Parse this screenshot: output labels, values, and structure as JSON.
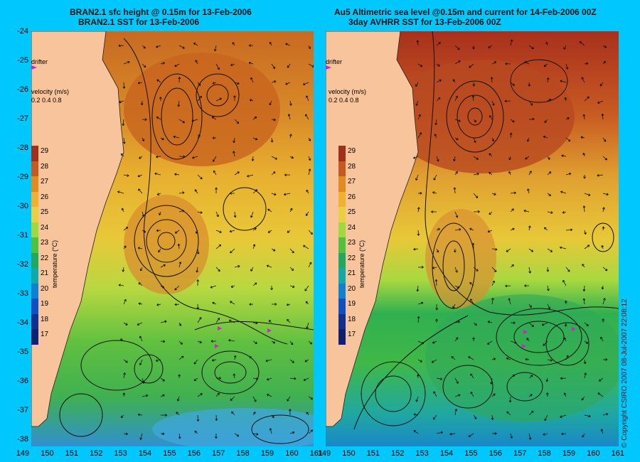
{
  "left_panel": {
    "title_line1": "BRAN2.1 sfc height @ 0.15m for 13-Feb-2006",
    "title_line2": "BRAN2.1 SST for 13-Feb-2006",
    "drifter_label": "drifter",
    "velocity_label": "velocity (m/s)",
    "velocity_scale": "0.2 0.4 0.8"
  },
  "right_panel": {
    "title_line1": "Au5 Altimetric sea level  @0.15m and current for 14-Feb-2006 00Z",
    "title_line2": "3day AVHRR SST for 13-Feb-2006 00Z",
    "drifter_label": "drifter",
    "velocity_label": "velocity (m/s)",
    "velocity_scale": "0.2 0.4 0.8"
  },
  "colorbar": {
    "title": "temperature (°C)",
    "ticks": [
      "29",
      "28",
      "27",
      "26",
      "25",
      "24",
      "23",
      "22",
      "21",
      "20",
      "19",
      "18",
      "17"
    ],
    "colors": [
      "#a0301e",
      "#c45a20",
      "#e08a20",
      "#f0b030",
      "#e8d040",
      "#a0d840",
      "#50c040",
      "#20a860",
      "#10a8a8",
      "#1080d0",
      "#1050c0",
      "#103090",
      "#102070"
    ]
  },
  "y_axis_labels": [
    "-24",
    "-25",
    "-26",
    "-27",
    "-28",
    "-29",
    "-30",
    "-31",
    "-32",
    "-33",
    "-34",
    "-35",
    "-36",
    "-37",
    "-38"
  ],
  "x_axis_labels": [
    "149",
    "150",
    "151",
    "152",
    "153",
    "154",
    "155",
    "156",
    "157",
    "158",
    "159",
    "160",
    "161"
  ],
  "copyright": "© Copyright CSIRO 2007  08-Jul-2007 22:08:12",
  "colors": {
    "background": "#00c8ff",
    "land": "#f8c49c",
    "drifter": "#d020d0"
  }
}
